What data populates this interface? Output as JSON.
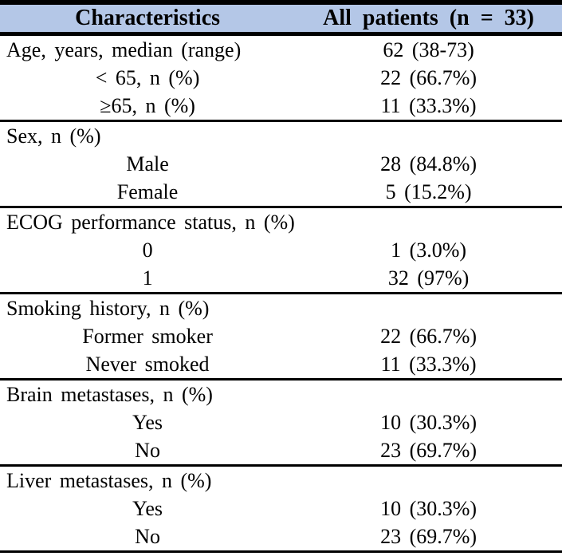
{
  "colors": {
    "header_background": "#b4c7e7",
    "border": "#000000",
    "text": "#000000",
    "page_background": "#ffffff"
  },
  "table": {
    "header": {
      "col1": "Characteristics",
      "col2": "All patients (n = 33)"
    },
    "rows": [
      {
        "label": "Age, years, median (range)",
        "value": "62 (38-73)"
      },
      {
        "label": "< 65, n (%)",
        "value": "22 (66.7%)"
      },
      {
        "label": "≥65, n (%)",
        "value": "11 (33.3%)"
      },
      {
        "label": "Sex, n (%)",
        "value": ""
      },
      {
        "label": "Male",
        "value": "28 (84.8%)"
      },
      {
        "label": "Female",
        "value": "5 (15.2%)"
      },
      {
        "label": "ECOG performance status, n (%)",
        "value": ""
      },
      {
        "label": "0",
        "value": "1 (3.0%)"
      },
      {
        "label": "1",
        "value": "32 (97%)"
      },
      {
        "label": "Smoking history, n (%)",
        "value": ""
      },
      {
        "label": "Former smoker",
        "value": "22 (66.7%)"
      },
      {
        "label": "Never smoked",
        "value": "11 (33.3%)"
      },
      {
        "label": "Brain metastases, n (%)",
        "value": ""
      },
      {
        "label": "Yes",
        "value": "10 (30.3%)"
      },
      {
        "label": "No",
        "value": "23 (69.7%)"
      },
      {
        "label": "Liver metastases, n (%)",
        "value": ""
      },
      {
        "label": "Yes",
        "value": "10 (30.3%)"
      },
      {
        "label": "No",
        "value": "23 (69.7%)"
      }
    ]
  }
}
